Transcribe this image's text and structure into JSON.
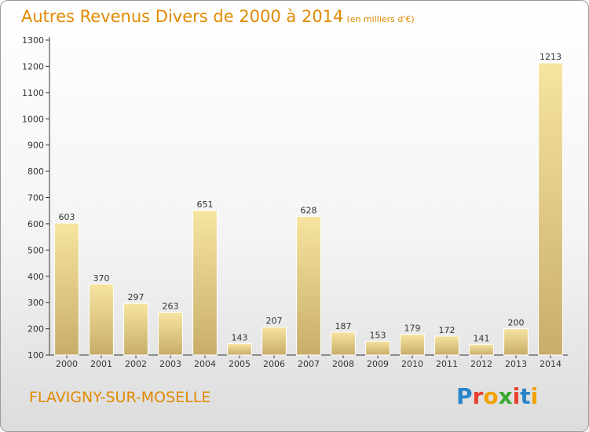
{
  "title": "Autres Revenus Divers de 2000 à 2014",
  "subtitle": "(en milliers d'€)",
  "commune": "FLAVIGNY-SUR-MOSELLE",
  "logo": {
    "text": "Proxiti",
    "letters": [
      {
        "ch": "P",
        "color": "#2a84c9"
      },
      {
        "ch": "r",
        "color": "#e8402c"
      },
      {
        "ch": "o",
        "color": "#f2a100"
      },
      {
        "ch": "x",
        "color": "#3da834"
      },
      {
        "ch": "i",
        "color": "#e8402c"
      },
      {
        "ch": "t",
        "color": "#2a84c9"
      },
      {
        "ch": "i",
        "color": "#f2a100"
      }
    ]
  },
  "colors": {
    "title": "#e08a00",
    "bar_light": "#f6e4a0",
    "bar_dark": "#c8ad6a",
    "axis": "#333333"
  },
  "chart_data": {
    "type": "bar",
    "title": "Autres Revenus Divers de 2000 à 2014",
    "subtitle": "(en milliers d'€)",
    "categories": [
      "2000",
      "2001",
      "2002",
      "2003",
      "2004",
      "2005",
      "2006",
      "2007",
      "2008",
      "2009",
      "2010",
      "2011",
      "2012",
      "2013",
      "2014"
    ],
    "values": [
      603,
      370,
      297,
      263,
      651,
      143,
      207,
      628,
      187,
      153,
      179,
      172,
      141,
      200,
      1213
    ],
    "ylim": [
      100,
      1300
    ],
    "yticks": [
      100,
      200,
      300,
      400,
      500,
      600,
      700,
      800,
      900,
      1000,
      1100,
      1200,
      1300
    ],
    "grid": false,
    "data_labels": true
  }
}
